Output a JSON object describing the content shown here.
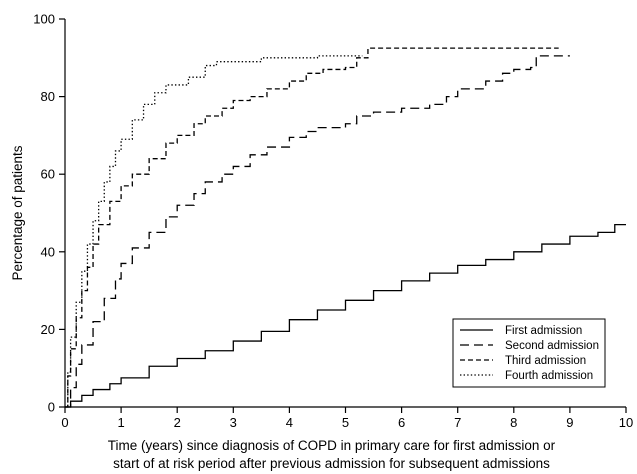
{
  "chart_data": {
    "type": "line",
    "xlabel": "Time (years) since diagnosis of COPD in primary care for first admission or",
    "xlabel_line2": "start of at risk period after previous admission for subsequent admissions",
    "ylabel": "Percentage of patients",
    "xlim": [
      0,
      10
    ],
    "ylim": [
      0,
      100
    ],
    "xticks": [
      "0",
      "1",
      "2",
      "3",
      "4",
      "5",
      "6",
      "7",
      "8",
      "9",
      "10"
    ],
    "yticks": [
      "0",
      "20",
      "40",
      "60",
      "80",
      "100"
    ],
    "grid": false,
    "legend_position": "bottom-right",
    "series": [
      {
        "name": "First admission",
        "dash": "solid",
        "points": [
          [
            0,
            0
          ],
          [
            0.1,
            1.5
          ],
          [
            0.3,
            3
          ],
          [
            0.5,
            4.5
          ],
          [
            0.8,
            6
          ],
          [
            1.0,
            7.5
          ],
          [
            1.5,
            10.5
          ],
          [
            2.0,
            12.5
          ],
          [
            2.5,
            14.5
          ],
          [
            3.0,
            17
          ],
          [
            3.5,
            19.5
          ],
          [
            4.0,
            22.5
          ],
          [
            4.5,
            25
          ],
          [
            5.0,
            27.5
          ],
          [
            5.5,
            30
          ],
          [
            6.0,
            32.5
          ],
          [
            6.5,
            34.5
          ],
          [
            7.0,
            36.5
          ],
          [
            7.5,
            38
          ],
          [
            8.0,
            40
          ],
          [
            8.5,
            42
          ],
          [
            9.0,
            44
          ],
          [
            9.5,
            45
          ],
          [
            9.8,
            47
          ],
          [
            10.0,
            47
          ]
        ]
      },
      {
        "name": "Second admission",
        "dash": "long-dash",
        "points": [
          [
            0,
            0
          ],
          [
            0.1,
            5
          ],
          [
            0.2,
            11
          ],
          [
            0.3,
            16
          ],
          [
            0.5,
            22
          ],
          [
            0.7,
            28
          ],
          [
            0.9,
            33
          ],
          [
            1.0,
            37
          ],
          [
            1.2,
            41
          ],
          [
            1.5,
            45
          ],
          [
            1.8,
            49
          ],
          [
            2.0,
            52
          ],
          [
            2.3,
            55
          ],
          [
            2.5,
            58
          ],
          [
            2.8,
            60
          ],
          [
            3.0,
            62
          ],
          [
            3.3,
            65
          ],
          [
            3.6,
            67
          ],
          [
            4.0,
            69.5
          ],
          [
            4.3,
            71
          ],
          [
            4.5,
            72
          ],
          [
            5.0,
            73
          ],
          [
            5.2,
            75
          ],
          [
            5.5,
            76
          ],
          [
            6.0,
            77
          ],
          [
            6.5,
            78
          ],
          [
            6.8,
            80
          ],
          [
            7.0,
            82
          ],
          [
            7.5,
            84
          ],
          [
            7.8,
            86
          ],
          [
            8.0,
            87
          ],
          [
            8.3,
            87.5
          ],
          [
            8.4,
            90.5
          ],
          [
            9.0,
            90.5
          ]
        ]
      },
      {
        "name": "Third admission",
        "dash": "dash",
        "points": [
          [
            0,
            0
          ],
          [
            0.05,
            8
          ],
          [
            0.1,
            15
          ],
          [
            0.2,
            23
          ],
          [
            0.3,
            30
          ],
          [
            0.4,
            36
          ],
          [
            0.5,
            42
          ],
          [
            0.6,
            47
          ],
          [
            0.8,
            53
          ],
          [
            1.0,
            57
          ],
          [
            1.2,
            60
          ],
          [
            1.5,
            64
          ],
          [
            1.8,
            68
          ],
          [
            2.0,
            70
          ],
          [
            2.3,
            73
          ],
          [
            2.5,
            75
          ],
          [
            2.8,
            77
          ],
          [
            3.0,
            79
          ],
          [
            3.3,
            80
          ],
          [
            3.6,
            82
          ],
          [
            4.0,
            84
          ],
          [
            4.3,
            86
          ],
          [
            4.6,
            87
          ],
          [
            5.0,
            87.5
          ],
          [
            5.2,
            90
          ],
          [
            5.4,
            92.5
          ],
          [
            6.0,
            92.5
          ],
          [
            7.0,
            92.5
          ],
          [
            8.0,
            92.5
          ],
          [
            8.8,
            92.5
          ]
        ]
      },
      {
        "name": "Fourth admission",
        "dash": "dot",
        "points": [
          [
            0,
            0
          ],
          [
            0.05,
            9
          ],
          [
            0.1,
            18
          ],
          [
            0.2,
            27
          ],
          [
            0.3,
            35
          ],
          [
            0.4,
            42
          ],
          [
            0.5,
            48
          ],
          [
            0.6,
            53
          ],
          [
            0.7,
            58
          ],
          [
            0.8,
            62
          ],
          [
            0.9,
            66
          ],
          [
            1.0,
            69
          ],
          [
            1.2,
            74
          ],
          [
            1.4,
            78
          ],
          [
            1.6,
            81
          ],
          [
            1.8,
            83
          ],
          [
            2.0,
            83
          ],
          [
            2.2,
            85
          ],
          [
            2.5,
            88
          ],
          [
            2.7,
            89
          ],
          [
            3.0,
            89
          ],
          [
            3.5,
            90
          ],
          [
            4.0,
            90
          ],
          [
            4.5,
            90.5
          ],
          [
            5.0,
            90.5
          ],
          [
            5.3,
            90.5
          ]
        ]
      }
    ]
  }
}
